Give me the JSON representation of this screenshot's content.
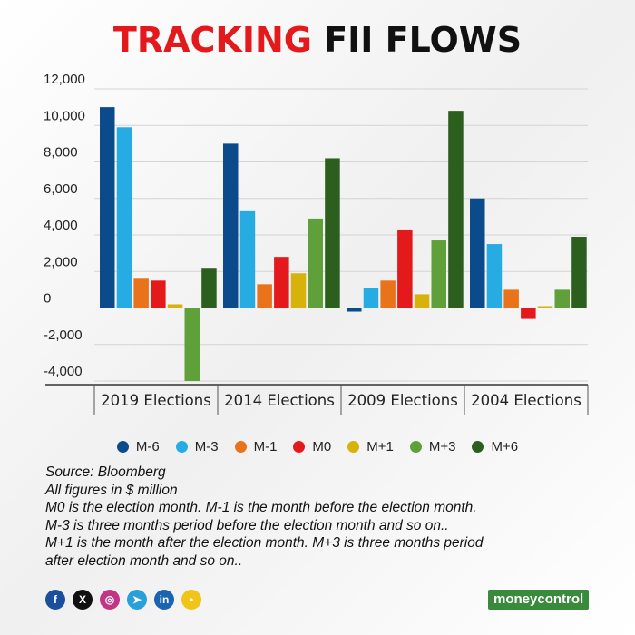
{
  "title": {
    "accent": "TRACKING",
    "rest": "FII FLOWS"
  },
  "chart_data": {
    "type": "bar",
    "title": "TRACKING FII FLOWS",
    "categories": [
      "2019 Elections",
      "2014 Elections",
      "2009 Elections",
      "2004 Elections"
    ],
    "ylim": [
      -4000,
      12000
    ],
    "yticks": [
      12000,
      10000,
      8000,
      6000,
      4000,
      2000,
      0,
      -2000,
      -4000
    ],
    "ytick_labels": [
      "12,000",
      "10,000",
      "8,000",
      "6,000",
      "4,000",
      "2,000",
      "0",
      "-2,000",
      "-4,000"
    ],
    "grid": true,
    "legend_position": "bottom",
    "series": [
      {
        "name": "M-6",
        "color": "#0b4a8b",
        "values": [
          11000,
          9000,
          -200,
          6000
        ]
      },
      {
        "name": "M-3",
        "color": "#26ace2",
        "values": [
          9900,
          5300,
          1100,
          3500
        ]
      },
      {
        "name": "M-1",
        "color": "#e8731b",
        "values": [
          1600,
          1300,
          1500,
          1000
        ]
      },
      {
        "name": "M0",
        "color": "#e3191c",
        "values": [
          1500,
          2800,
          4300,
          -600
        ]
      },
      {
        "name": "M+1",
        "color": "#d7b20a",
        "values": [
          200,
          1900,
          750,
          100
        ]
      },
      {
        "name": "M+3",
        "color": "#5fa03b",
        "values": [
          -4000,
          4900,
          3700,
          1000
        ]
      },
      {
        "name": "M+6",
        "color": "#2c5e1e",
        "values": [
          2200,
          8200,
          10800,
          3900
        ]
      }
    ]
  },
  "notes": [
    "Source: Bloomberg",
    "All figures in $ million",
    "M0 is the election month. M-1 is the month before the election month.",
    "M-3 is three months period before the election month and so on..",
    "M+1 is the month after the election month. M+3 is three months period",
    "after election month and so on.."
  ],
  "social": [
    {
      "icon": "facebook-icon",
      "glyph": "f",
      "color": "#1b4f9c"
    },
    {
      "icon": "x-icon",
      "glyph": "X",
      "color": "#111111"
    },
    {
      "icon": "instagram-icon",
      "glyph": "◎",
      "color": "#c13584"
    },
    {
      "icon": "telegram-icon",
      "glyph": "➤",
      "color": "#2aa0d8"
    },
    {
      "icon": "linkedin-icon",
      "glyph": "in",
      "color": "#1b64b0"
    },
    {
      "icon": "koo-icon",
      "glyph": "•",
      "color": "#f0c419"
    }
  ],
  "brand": {
    "label": "moneycontrol",
    "color": "#3a8a3c"
  }
}
